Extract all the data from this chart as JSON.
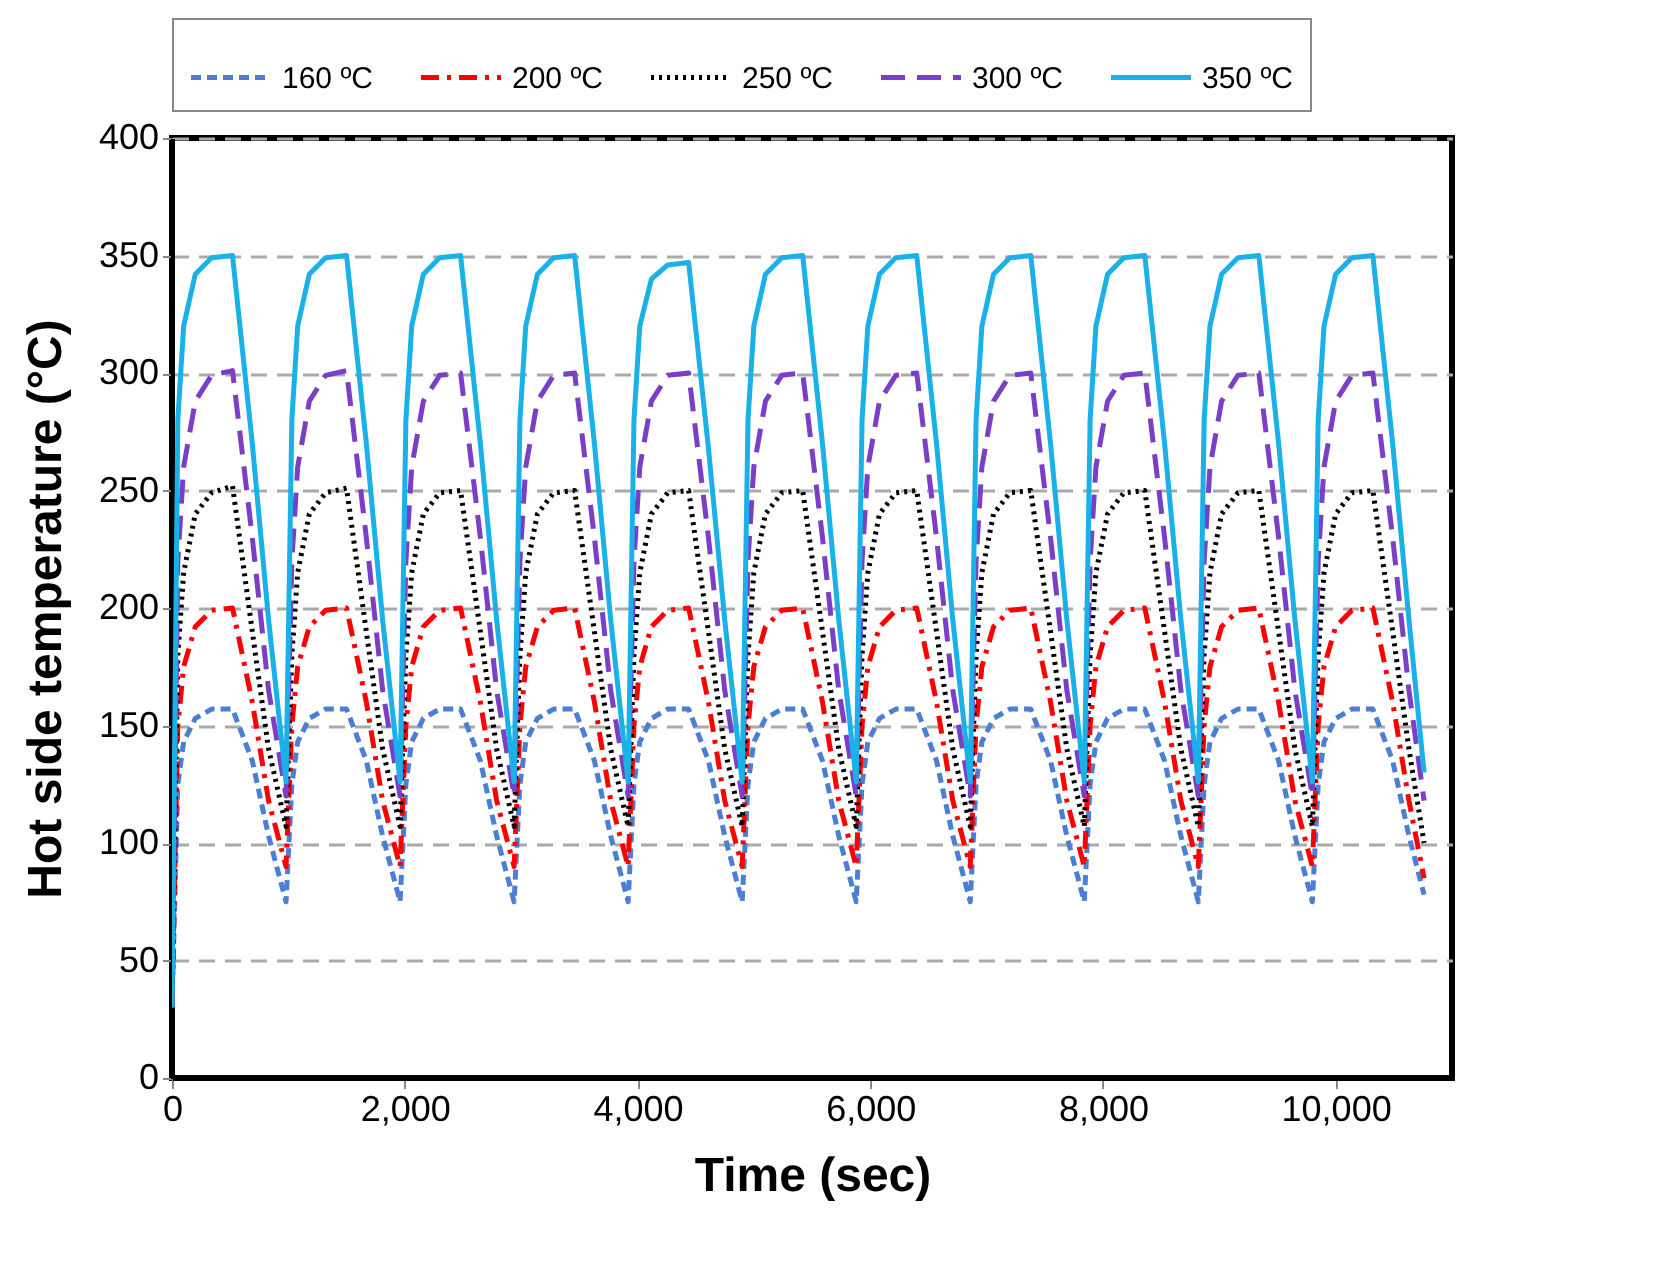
{
  "chart_data": {
    "type": "line",
    "xlabel": "Time (sec)",
    "ylabel": "Hot side temperature (°C)",
    "xlim": [
      0,
      11000
    ],
    "xticks": [
      {
        "value": 0,
        "label": "0"
      },
      {
        "value": 2000,
        "label": "2,000"
      },
      {
        "value": 4000,
        "label": "4,000"
      },
      {
        "value": 6000,
        "label": "6,000"
      },
      {
        "value": 8000,
        "label": "8,000"
      },
      {
        "value": 10000,
        "label": "10,000"
      }
    ],
    "ylim": [
      0,
      400
    ],
    "yticks": [
      0,
      50,
      100,
      150,
      200,
      250,
      300,
      350,
      400
    ],
    "grid": "y",
    "legend": "top",
    "marker": "none",
    "x": [
      0,
      50,
      100,
      200,
      340,
      520,
      690,
      830,
      980,
      1030,
      1080,
      1180,
      1320,
      1500,
      1670,
      1810,
      1960,
      2010,
      2060,
      2160,
      2300,
      2480,
      2650,
      2790,
      2940,
      2990,
      3040,
      3140,
      3280,
      3460,
      3630,
      3770,
      3920,
      3970,
      4020,
      4120,
      4260,
      4440,
      4610,
      4750,
      4900,
      4950,
      5000,
      5100,
      5240,
      5420,
      5590,
      5730,
      5880,
      5930,
      5980,
      6080,
      6220,
      6400,
      6570,
      6710,
      6860,
      6910,
      6960,
      7060,
      7200,
      7380,
      7550,
      7690,
      7840,
      7890,
      7940,
      8040,
      8180,
      8360,
      8530,
      8670,
      8820,
      8870,
      8920,
      9020,
      9160,
      9340,
      9510,
      9650,
      9800,
      9850,
      9900,
      10000,
      10140,
      10320,
      10490,
      10630,
      10760
    ],
    "series": [
      {
        "name": "160 ºC",
        "color": "#4a7fd4",
        "line_style": "dashed",
        "values": [
          30,
          125,
          143,
          153,
          157,
          157,
          135,
          103,
          75,
          125,
          143,
          153,
          157,
          157,
          135,
          103,
          75,
          125,
          143,
          153,
          157,
          157,
          135,
          103,
          75,
          125,
          143,
          153,
          157,
          157,
          135,
          103,
          75,
          125,
          143,
          153,
          157,
          157,
          135,
          103,
          75,
          125,
          143,
          153,
          157,
          157,
          135,
          103,
          75,
          125,
          143,
          153,
          157,
          157,
          135,
          103,
          75,
          125,
          143,
          153,
          157,
          157,
          135,
          103,
          75,
          125,
          143,
          153,
          157,
          157,
          135,
          103,
          75,
          125,
          143,
          153,
          157,
          157,
          135,
          103,
          75,
          125,
          143,
          153,
          157,
          157,
          135,
          103,
          78
        ]
      },
      {
        "name": "200 ºC",
        "color": "#ff0000",
        "line_style": "dashdot",
        "values": [
          30,
          150,
          175,
          192,
          199,
          200,
          160,
          118,
          90,
          150,
          175,
          192,
          199,
          200,
          160,
          118,
          90,
          150,
          175,
          192,
          199,
          200,
          160,
          118,
          90,
          150,
          175,
          192,
          199,
          200,
          160,
          118,
          90,
          150,
          175,
          192,
          199,
          200,
          160,
          118,
          90,
          150,
          175,
          192,
          199,
          200,
          160,
          118,
          90,
          150,
          175,
          192,
          199,
          200,
          160,
          118,
          90,
          150,
          175,
          192,
          199,
          200,
          160,
          118,
          90,
          150,
          175,
          192,
          199,
          200,
          160,
          118,
          90,
          150,
          175,
          192,
          199,
          200,
          160,
          118,
          90,
          150,
          175,
          192,
          199,
          200,
          160,
          118,
          85
        ]
      },
      {
        "name": "250 ºC",
        "color": "#000000",
        "line_style": "dotted",
        "values": [
          30,
          180,
          215,
          240,
          249,
          252,
          190,
          140,
          107,
          180,
          215,
          240,
          249,
          251,
          190,
          140,
          107,
          180,
          215,
          240,
          249,
          250,
          190,
          140,
          107,
          180,
          215,
          240,
          249,
          250,
          190,
          140,
          107,
          180,
          215,
          240,
          249,
          250,
          190,
          140,
          107,
          180,
          215,
          240,
          249,
          250,
          190,
          140,
          107,
          180,
          215,
          240,
          249,
          250,
          190,
          140,
          107,
          180,
          215,
          240,
          249,
          250,
          190,
          140,
          107,
          180,
          215,
          240,
          249,
          250,
          190,
          140,
          107,
          180,
          215,
          240,
          249,
          250,
          190,
          140,
          107,
          180,
          215,
          240,
          249,
          250,
          190,
          140,
          100
        ]
      },
      {
        "name": "300 ºC",
        "color": "#7a3fc6",
        "line_style": "longdash",
        "values": [
          30,
          220,
          260,
          288,
          299,
          301,
          230,
          165,
          120,
          220,
          260,
          288,
          299,
          301,
          230,
          165,
          120,
          220,
          260,
          288,
          299,
          300,
          230,
          165,
          120,
          220,
          260,
          288,
          299,
          300,
          230,
          165,
          120,
          220,
          260,
          288,
          299,
          300,
          230,
          165,
          120,
          220,
          260,
          288,
          299,
          300,
          230,
          165,
          120,
          220,
          260,
          288,
          299,
          300,
          230,
          165,
          120,
          220,
          260,
          288,
          299,
          300,
          230,
          165,
          120,
          220,
          260,
          288,
          299,
          300,
          230,
          165,
          120,
          220,
          260,
          288,
          299,
          300,
          230,
          165,
          120,
          220,
          260,
          288,
          299,
          300,
          230,
          165,
          118
        ]
      },
      {
        "name": "350 ºC",
        "color": "#1ab0e8",
        "line_style": "solid",
        "values": [
          30,
          280,
          320,
          342,
          349,
          350,
          270,
          195,
          126,
          280,
          320,
          342,
          349,
          350,
          270,
          195,
          126,
          280,
          320,
          342,
          349,
          350,
          270,
          195,
          126,
          280,
          320,
          342,
          349,
          350,
          270,
          195,
          126,
          280,
          320,
          340,
          346,
          347,
          268,
          195,
          126,
          280,
          320,
          342,
          349,
          350,
          270,
          195,
          126,
          280,
          320,
          342,
          349,
          350,
          270,
          195,
          126,
          280,
          320,
          342,
          349,
          350,
          270,
          195,
          126,
          280,
          320,
          342,
          349,
          350,
          270,
          195,
          126,
          280,
          320,
          342,
          349,
          350,
          270,
          195,
          126,
          280,
          320,
          342,
          349,
          350,
          270,
          195,
          130
        ]
      }
    ]
  }
}
